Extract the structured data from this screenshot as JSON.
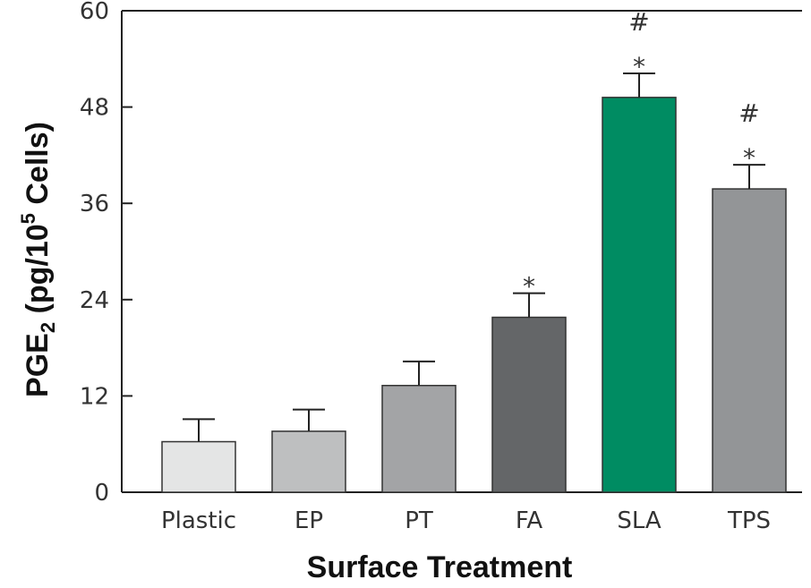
{
  "chart_data": {
    "type": "bar",
    "xlabel": "Surface Treatment",
    "ylabel_parts": [
      "PGE",
      "2",
      " (pg/10",
      "5",
      " Cells)"
    ],
    "ylim": [
      0,
      60
    ],
    "yticks": [
      "0",
      "12",
      "24",
      "36",
      "48",
      "60"
    ],
    "categories": [
      "Plastic",
      "EP",
      "PT",
      "FA",
      "SLA",
      "TPS"
    ],
    "values": [
      6.3,
      7.6,
      13.3,
      21.8,
      49.2,
      37.8
    ],
    "errors": [
      2.8,
      2.7,
      3.0,
      3.0,
      3.0,
      3.0
    ],
    "colors": [
      "#e4e5e5",
      "#bebfc0",
      "#a3a4a6",
      "#646668",
      "#008c62",
      "#939597"
    ],
    "annotations": [
      {
        "category": "FA",
        "marks": [
          "*"
        ]
      },
      {
        "category": "SLA",
        "marks": [
          "#",
          "*"
        ]
      },
      {
        "category": "TPS",
        "marks": [
          "#",
          "*"
        ]
      }
    ]
  }
}
